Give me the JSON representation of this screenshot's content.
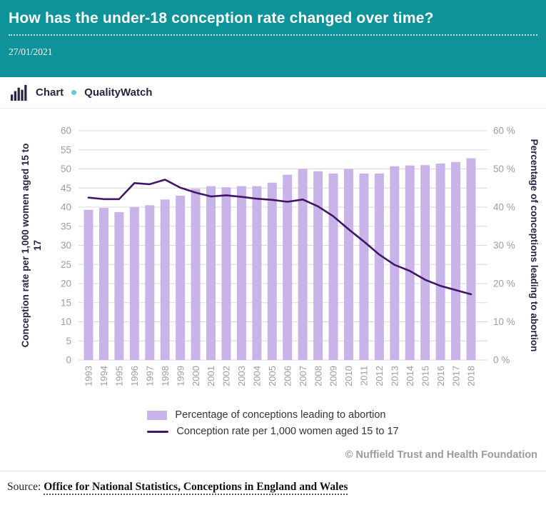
{
  "header": {
    "title": "How has the under-18 conception rate changed over time?",
    "date": "27/01/2021",
    "background_color": "#0e939a"
  },
  "brandbar": {
    "type_label": "Chart",
    "brand": "QualityWatch",
    "bullet_color": "#66c5d6",
    "icon_color": "#262644"
  },
  "chart_data": {
    "type": "bar+line",
    "categories": [
      "1993",
      "1994",
      "1995",
      "1996",
      "1997",
      "1998",
      "1999",
      "2000",
      "2001",
      "2002",
      "2003",
      "2004",
      "2005",
      "2006",
      "2007",
      "2008",
      "2009",
      "2010",
      "2011",
      "2012",
      "2013",
      "2014",
      "2015",
      "2016",
      "2017",
      "2018"
    ],
    "series": [
      {
        "name": "Percentage of conceptions leading to abortion",
        "type": "bar",
        "axis": "right",
        "color": "#c9b4e9",
        "values": [
          39.3,
          39.8,
          38.7,
          40.0,
          40.5,
          42.0,
          43.0,
          44.8,
          45.5,
          45.2,
          45.5,
          45.5,
          46.4,
          48.5,
          50.0,
          49.4,
          48.8,
          50.0,
          48.8,
          48.8,
          50.7,
          50.9,
          51.0,
          51.4,
          51.8,
          52.8
        ]
      },
      {
        "name": "Conception rate per 1,000 women aged 15 to 17",
        "type": "line",
        "axis": "left",
        "color": "#431569",
        "values": [
          42.5,
          42.1,
          42.1,
          46.3,
          46.0,
          47.2,
          45.1,
          43.8,
          42.8,
          43.1,
          42.7,
          42.2,
          41.9,
          41.4,
          42.0,
          40.2,
          37.6,
          34.2,
          31.0,
          27.6,
          24.9,
          23.3,
          21.0,
          19.4,
          18.3,
          17.2
        ]
      }
    ],
    "left_axis": {
      "title": "Conception rate per 1,000 women aged 15 to 17",
      "title_lines": [
        "Conception rate per 1,000 women aged 15 to",
        "17"
      ],
      "min": 0,
      "max": 60,
      "tick_step": 5,
      "suffix": ""
    },
    "right_axis": {
      "title": "Percentage of conceptions leading to abortion",
      "min": 0,
      "max": 60,
      "tick_step": 10,
      "suffix": " %"
    },
    "grid": true,
    "gridline_color": "#d9d9d9",
    "tick_label_color": "#9d9d9d",
    "axis_title_color": "#262644",
    "legend_position": "bottom"
  },
  "footer": {
    "copyright": "© Nuffield Trust and Health Foundation",
    "source_label": "Source:",
    "source_link": "Office for National Statistics, Conceptions in England and Wales"
  }
}
